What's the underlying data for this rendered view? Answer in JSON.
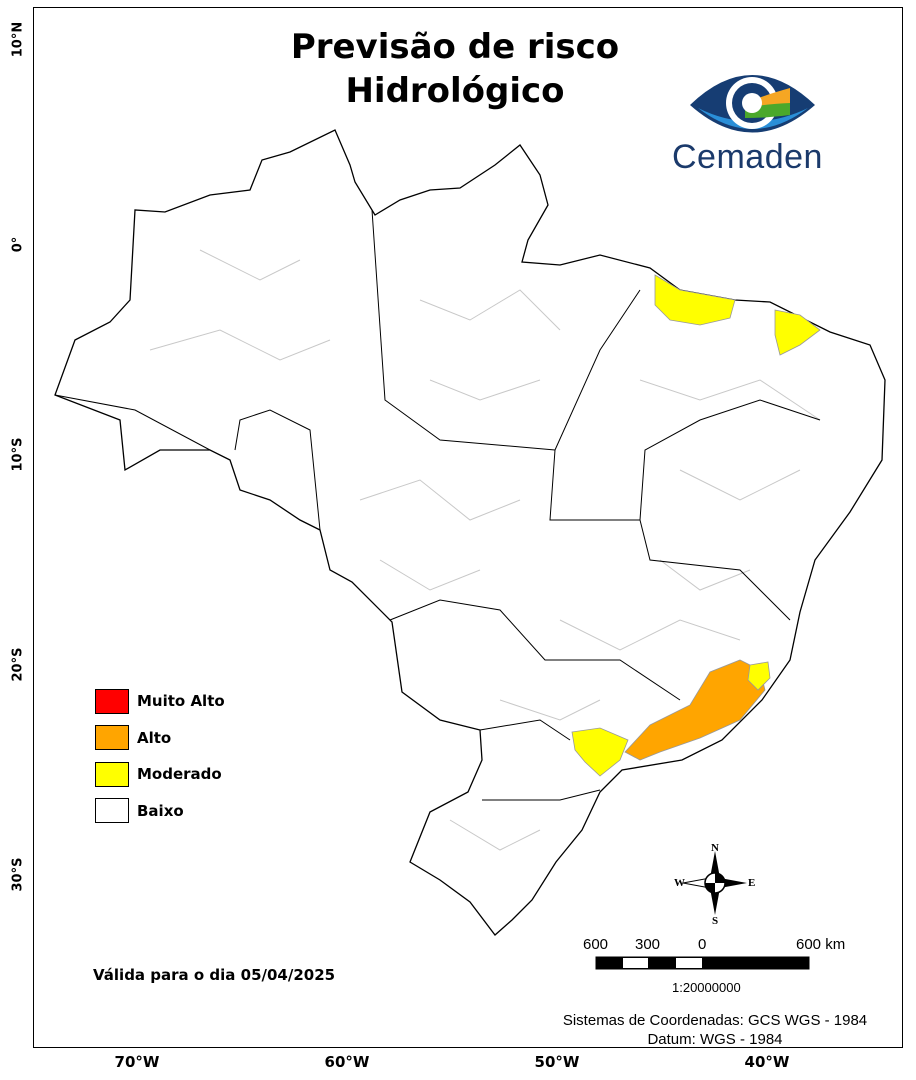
{
  "title": {
    "line1": "Previsão de risco",
    "line2": "Hidrológico"
  },
  "logo": {
    "text": "Cemaden",
    "colors": {
      "dark_blue": "#163d73",
      "light_blue": "#2a8fd8",
      "orange": "#f5a623",
      "green": "#4aa82b"
    }
  },
  "axes": {
    "lat_labels": [
      "10°N",
      "0°",
      "10°S",
      "20°S",
      "30°S"
    ],
    "lon_labels": [
      "70°W",
      "60°W",
      "50°W",
      "40°W"
    ]
  },
  "legend": {
    "items": [
      {
        "label": "Muito Alto",
        "color": "#ff0000"
      },
      {
        "label": "Alto",
        "color": "#ffa500"
      },
      {
        "label": "Moderado",
        "color": "#ffff00"
      },
      {
        "label": "Baixo",
        "color": "#ffffff"
      }
    ]
  },
  "validity": "Válida para o dia 05/04/2025",
  "compass": {
    "n": "N",
    "s": "S",
    "e": "E",
    "w": "W"
  },
  "scale_bar": {
    "labels": [
      "600",
      "300",
      "0",
      "600 km"
    ],
    "ratio": "1:20000000"
  },
  "crs": {
    "line1": "Sistemas de Coordenadas: GCS WGS - 1984",
    "line2": "Datum: WGS - 1984"
  },
  "map_colors": {
    "border": "#000000",
    "municipal_lines": "#c8c8c8",
    "high": "#ffa500",
    "moderate": "#ffff00"
  }
}
